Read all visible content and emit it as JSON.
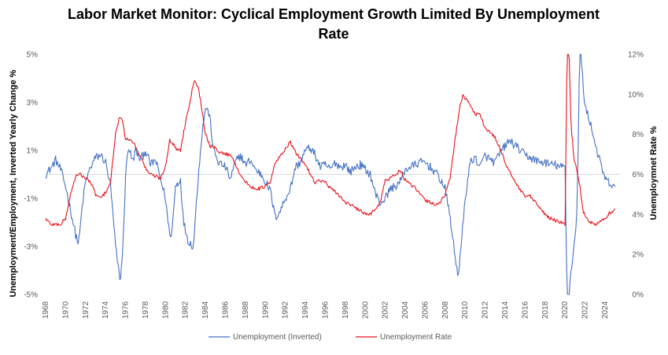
{
  "chart_data": {
    "type": "line",
    "title_line1": "Labor Market Monitor: Cyclical Employment Growth Limited By Unemployment",
    "title_line2": "Rate",
    "left_axis": {
      "label": "Unemployment/Employment, Inverted Yearly Change  %",
      "ticks": [
        "5%",
        "3%",
        "1%",
        "-1%",
        "-3%",
        "-5%"
      ],
      "range": [
        -5,
        5
      ]
    },
    "right_axis": {
      "label": "Unemploymnet Rate %",
      "ticks": [
        "12%",
        "10%",
        "8%",
        "6%",
        "4%",
        "2%",
        "0%"
      ],
      "range": [
        0,
        12
      ]
    },
    "x_axis": {
      "range": [
        1968,
        2025.5
      ],
      "ticks": [
        "1968",
        "1970",
        "1972",
        "1974",
        "1976",
        "1978",
        "1980",
        "1982",
        "1984",
        "1986",
        "1988",
        "1990",
        "1992",
        "1994",
        "1996",
        "1998",
        "2000",
        "2002",
        "2004",
        "2006",
        "2008",
        "2010",
        "2012",
        "2014",
        "2016",
        "2018",
        "2020",
        "2022",
        "2024"
      ]
    },
    "series": [
      {
        "name": "Unemployment (Inverted)",
        "color": "#4472C4",
        "axis": "left",
        "points": [
          [
            1968,
            0.0
          ],
          [
            1968.6,
            0.3
          ],
          [
            1969,
            0.6
          ],
          [
            1969.5,
            0.2
          ],
          [
            1970,
            -0.5
          ],
          [
            1970.5,
            -1.5
          ],
          [
            1971,
            -2.5
          ],
          [
            1971.3,
            -2.9
          ],
          [
            1971.7,
            -1.2
          ],
          [
            1972,
            -0.3
          ],
          [
            1972.5,
            0.3
          ],
          [
            1973,
            0.7
          ],
          [
            1973.5,
            0.8
          ],
          [
            1974,
            0.5
          ],
          [
            1974.5,
            -0.5
          ],
          [
            1975,
            -3.0
          ],
          [
            1975.3,
            -4.0
          ],
          [
            1975.5,
            -4.4
          ],
          [
            1975.8,
            -2.5
          ],
          [
            1976,
            0.0
          ],
          [
            1976.3,
            1.2
          ],
          [
            1976.7,
            0.5
          ],
          [
            1977,
            1.0
          ],
          [
            1977.5,
            0.6
          ],
          [
            1978,
            1.0
          ],
          [
            1978.5,
            0.4
          ],
          [
            1979,
            0.6
          ],
          [
            1979.5,
            -0.2
          ],
          [
            1980,
            -1.0
          ],
          [
            1980.3,
            -2.2
          ],
          [
            1980.6,
            -2.6
          ],
          [
            1981,
            -0.5
          ],
          [
            1981.5,
            -0.2
          ],
          [
            1981.8,
            -2.0
          ],
          [
            1982.3,
            -2.8
          ],
          [
            1982.8,
            -3.0
          ],
          [
            1983.2,
            -0.5
          ],
          [
            1983.6,
            1.5
          ],
          [
            1984,
            2.8
          ],
          [
            1984.4,
            2.5
          ],
          [
            1984.8,
            1.0
          ],
          [
            1985.3,
            0.5
          ],
          [
            1986,
            0.3
          ],
          [
            1986.5,
            -0.2
          ],
          [
            1987,
            0.5
          ],
          [
            1987.5,
            0.8
          ],
          [
            1988,
            0.4
          ],
          [
            1988.5,
            0.6
          ],
          [
            1989,
            0.2
          ],
          [
            1989.6,
            0.0
          ],
          [
            1990,
            -0.3
          ],
          [
            1990.5,
            -0.7
          ],
          [
            1991,
            -1.8
          ],
          [
            1991.5,
            -1.5
          ],
          [
            1992,
            -1.0
          ],
          [
            1992.5,
            -0.6
          ],
          [
            1993,
            0.3
          ],
          [
            1993.5,
            0.5
          ],
          [
            1994,
            1.0
          ],
          [
            1994.5,
            1.1
          ],
          [
            1995,
            0.8
          ],
          [
            1995.5,
            0.3
          ],
          [
            1996,
            0.4
          ],
          [
            1996.5,
            0.2
          ],
          [
            1997,
            0.5
          ],
          [
            1997.5,
            0.3
          ],
          [
            1998,
            0.4
          ],
          [
            1998.5,
            0.1
          ],
          [
            1999,
            0.3
          ],
          [
            1999.5,
            0.4
          ],
          [
            2000,
            0.2
          ],
          [
            2000.5,
            0.0
          ],
          [
            2001,
            -0.8
          ],
          [
            2001.5,
            -1.2
          ],
          [
            2002,
            -1.0
          ],
          [
            2002.5,
            -0.6
          ],
          [
            2003,
            -0.5
          ],
          [
            2003.5,
            -0.3
          ],
          [
            2004,
            0.2
          ],
          [
            2004.5,
            0.3
          ],
          [
            2005,
            0.4
          ],
          [
            2005.5,
            0.5
          ],
          [
            2006,
            0.5
          ],
          [
            2006.5,
            0.3
          ],
          [
            2007,
            0.1
          ],
          [
            2007.5,
            -0.2
          ],
          [
            2008,
            -0.6
          ],
          [
            2008.5,
            -1.8
          ],
          [
            2009,
            -3.5
          ],
          [
            2009.3,
            -4.2
          ],
          [
            2009.6,
            -3.0
          ],
          [
            2010,
            -1.0
          ],
          [
            2010.5,
            0.5
          ],
          [
            2011,
            0.7
          ],
          [
            2011.5,
            0.3
          ],
          [
            2012,
            0.8
          ],
          [
            2012.5,
            0.6
          ],
          [
            2013,
            0.5
          ],
          [
            2013.5,
            0.9
          ],
          [
            2014,
            1.2
          ],
          [
            2014.5,
            1.4
          ],
          [
            2015,
            1.2
          ],
          [
            2015.5,
            1.0
          ],
          [
            2016,
            0.8
          ],
          [
            2016.5,
            0.7
          ],
          [
            2017,
            0.6
          ],
          [
            2017.5,
            0.5
          ],
          [
            2018,
            0.5
          ],
          [
            2018.5,
            0.4
          ],
          [
            2019,
            0.4
          ],
          [
            2019.5,
            0.3
          ],
          [
            2020,
            0.3
          ],
          [
            2020.2,
            -5.0
          ],
          [
            2020.4,
            -5.0
          ],
          [
            2020.6,
            -4.0
          ],
          [
            2020.9,
            -3.0
          ],
          [
            2021.2,
            -1.5
          ],
          [
            2021.35,
            2.0
          ],
          [
            2021.45,
            5.0
          ],
          [
            2021.6,
            5.0
          ],
          [
            2021.8,
            3.8
          ],
          [
            2022,
            2.8
          ],
          [
            2022.5,
            2.2
          ],
          [
            2023,
            1.3
          ],
          [
            2023.5,
            0.5
          ],
          [
            2024,
            -0.2
          ],
          [
            2024.5,
            -0.4
          ],
          [
            2025,
            -0.6
          ]
        ]
      },
      {
        "name": "Unemployment Rate",
        "color": "#E8141C",
        "axis": "right",
        "points": [
          [
            1968,
            3.8
          ],
          [
            1968.5,
            3.5
          ],
          [
            1969,
            3.5
          ],
          [
            1969.5,
            3.5
          ],
          [
            1970,
            3.8
          ],
          [
            1970.5,
            5.0
          ],
          [
            1971,
            5.9
          ],
          [
            1971.5,
            6.0
          ],
          [
            1972,
            5.8
          ],
          [
            1972.5,
            5.6
          ],
          [
            1973,
            5.0
          ],
          [
            1973.5,
            4.8
          ],
          [
            1974,
            5.1
          ],
          [
            1974.5,
            5.6
          ],
          [
            1975,
            8.0
          ],
          [
            1975.4,
            8.9
          ],
          [
            1975.8,
            8.5
          ],
          [
            1976,
            7.7
          ],
          [
            1976.5,
            7.8
          ],
          [
            1977,
            7.4
          ],
          [
            1977.5,
            6.9
          ],
          [
            1978,
            6.3
          ],
          [
            1978.5,
            6.0
          ],
          [
            1979,
            5.9
          ],
          [
            1979.5,
            5.8
          ],
          [
            1980,
            6.4
          ],
          [
            1980.4,
            7.7
          ],
          [
            1980.8,
            7.5
          ],
          [
            1981,
            7.3
          ],
          [
            1981.5,
            7.2
          ],
          [
            1982,
            8.6
          ],
          [
            1982.5,
            9.8
          ],
          [
            1982.9,
            10.8
          ],
          [
            1983.3,
            10.3
          ],
          [
            1983.6,
            9.4
          ],
          [
            1984,
            8.0
          ],
          [
            1984.5,
            7.4
          ],
          [
            1985,
            7.3
          ],
          [
            1985.5,
            7.1
          ],
          [
            1986,
            7.0
          ],
          [
            1986.5,
            7.0
          ],
          [
            1987,
            6.5
          ],
          [
            1987.5,
            6.0
          ],
          [
            1988,
            5.6
          ],
          [
            1988.5,
            5.4
          ],
          [
            1989,
            5.3
          ],
          [
            1989.5,
            5.3
          ],
          [
            1990,
            5.4
          ],
          [
            1990.5,
            5.6
          ],
          [
            1991,
            6.6
          ],
          [
            1991.5,
            6.9
          ],
          [
            1992,
            7.3
          ],
          [
            1992.5,
            7.6
          ],
          [
            1993,
            7.1
          ],
          [
            1993.5,
            6.8
          ],
          [
            1994,
            6.5
          ],
          [
            1994.5,
            6.0
          ],
          [
            1995,
            5.6
          ],
          [
            1995.5,
            5.7
          ],
          [
            1996,
            5.6
          ],
          [
            1996.5,
            5.3
          ],
          [
            1997,
            5.1
          ],
          [
            1997.5,
            4.9
          ],
          [
            1998,
            4.6
          ],
          [
            1998.5,
            4.5
          ],
          [
            1999,
            4.3
          ],
          [
            1999.5,
            4.2
          ],
          [
            2000,
            4.0
          ],
          [
            2000.5,
            4.0
          ],
          [
            2001,
            4.3
          ],
          [
            2001.5,
            4.6
          ],
          [
            2002,
            5.7
          ],
          [
            2002.5,
            5.8
          ],
          [
            2003,
            6.0
          ],
          [
            2003.5,
            6.2
          ],
          [
            2004,
            5.7
          ],
          [
            2004.5,
            5.5
          ],
          [
            2005,
            5.3
          ],
          [
            2005.5,
            5.0
          ],
          [
            2006,
            4.7
          ],
          [
            2006.5,
            4.6
          ],
          [
            2007,
            4.5
          ],
          [
            2007.5,
            4.6
          ],
          [
            2008,
            5.0
          ],
          [
            2008.5,
            5.8
          ],
          [
            2009,
            7.8
          ],
          [
            2009.5,
            9.5
          ],
          [
            2009.8,
            10.0
          ],
          [
            2010,
            9.8
          ],
          [
            2010.5,
            9.5
          ],
          [
            2011,
            9.0
          ],
          [
            2011.5,
            9.0
          ],
          [
            2012,
            8.3
          ],
          [
            2012.5,
            8.1
          ],
          [
            2013,
            7.8
          ],
          [
            2013.5,
            7.3
          ],
          [
            2014,
            6.6
          ],
          [
            2014.5,
            6.1
          ],
          [
            2015,
            5.6
          ],
          [
            2015.5,
            5.2
          ],
          [
            2016,
            4.9
          ],
          [
            2016.5,
            4.9
          ],
          [
            2017,
            4.6
          ],
          [
            2017.5,
            4.3
          ],
          [
            2018,
            4.0
          ],
          [
            2018.5,
            3.8
          ],
          [
            2019,
            3.7
          ],
          [
            2019.5,
            3.6
          ],
          [
            2020,
            3.5
          ],
          [
            2020.2,
            12.0
          ],
          [
            2020.4,
            12.0
          ],
          [
            2020.6,
            8.4
          ],
          [
            2020.9,
            6.8
          ],
          [
            2021.2,
            6.1
          ],
          [
            2021.5,
            5.4
          ],
          [
            2021.8,
            4.2
          ],
          [
            2022,
            3.9
          ],
          [
            2022.5,
            3.6
          ],
          [
            2023,
            3.5
          ],
          [
            2023.5,
            3.6
          ],
          [
            2024,
            3.8
          ],
          [
            2024.5,
            4.1
          ],
          [
            2025,
            4.2
          ]
        ]
      }
    ],
    "legend": [
      "Unemployment (Inverted)",
      "Unemployment Rate"
    ],
    "legend_position": "bottom",
    "reference_line": {
      "axis": "left",
      "value": 0
    }
  }
}
